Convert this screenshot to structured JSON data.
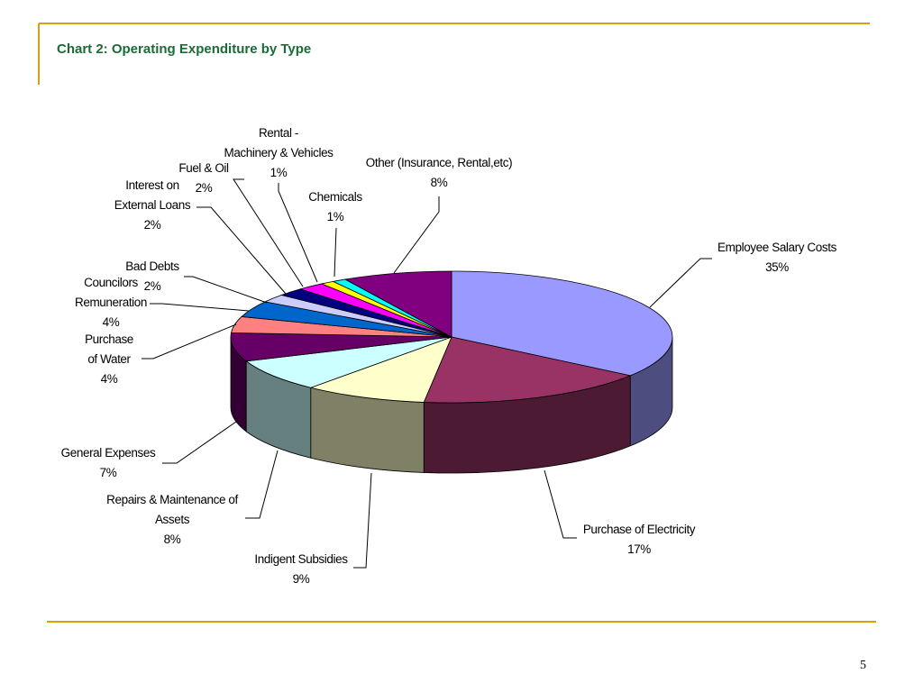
{
  "slide": {
    "title": "Chart 2: Operating Expenditure by Type",
    "page_number": "5",
    "accent_color": "#D4A017",
    "title_color": "#1A6B35"
  },
  "chart_data": {
    "type": "pie",
    "style": "3d-exploded-none",
    "title": "",
    "start_at": "12 o'clock, clockwise",
    "slices": [
      {
        "name": "Employee Salary Costs",
        "value": 35,
        "pct_label": "35%",
        "color": "#9999FF"
      },
      {
        "name": "Purchase of Electricity",
        "value": 17,
        "pct_label": "17%",
        "color": "#993366"
      },
      {
        "name": "Indigent Subsidies",
        "value": 9,
        "pct_label": "9%",
        "color": "#FFFFCC"
      },
      {
        "name": "Repairs & Maintenance of Assets",
        "value": 8,
        "pct_label": "8%",
        "color": "#CCFFFF"
      },
      {
        "name": "General Expenses",
        "value": 7,
        "pct_label": "7%",
        "color": "#660066"
      },
      {
        "name": "Purchase of Water",
        "value": 4,
        "pct_label": "4%",
        "color": "#FF8080"
      },
      {
        "name": "Councilors Remuneration",
        "value": 4,
        "pct_label": "4%",
        "color": "#0066CC"
      },
      {
        "name": "Bad Debts",
        "value": 2,
        "pct_label": "2%",
        "color": "#CCCCFF"
      },
      {
        "name": "Interest on External Loans",
        "value": 2,
        "pct_label": "2%",
        "color": "#000080"
      },
      {
        "name": "Fuel & Oil",
        "value": 2,
        "pct_label": "2%",
        "color": "#FF00FF"
      },
      {
        "name": "Rental - Machinery & Vehicles",
        "value": 1,
        "pct_label": "1%",
        "color": "#FFFF00"
      },
      {
        "name": "Chemicals",
        "value": 1,
        "pct_label": "1%",
        "color": "#00FFFF"
      },
      {
        "name": "Other (Insurance, Rental,etc)",
        "value": 8,
        "pct_label": "8%",
        "color": "#800080"
      }
    ],
    "labels": [
      {
        "lines": [
          "Employee Salary Costs",
          "35%"
        ]
      },
      {
        "lines": [
          "Purchase of Electricity",
          "17%"
        ]
      },
      {
        "lines": [
          "Indigent Subsidies",
          "9%"
        ]
      },
      {
        "lines": [
          "Repairs & Maintenance of",
          "Assets",
          "8%"
        ]
      },
      {
        "lines": [
          "General Expenses",
          "7%"
        ]
      },
      {
        "lines": [
          "Purchase",
          "of Water",
          "4%"
        ]
      },
      {
        "lines": [
          "Councilors",
          "Remuneration",
          "4%"
        ]
      },
      {
        "lines": [
          "Bad Debts",
          "2%"
        ]
      },
      {
        "lines": [
          "Interest on",
          "External Loans",
          "2%"
        ]
      },
      {
        "lines": [
          "Fuel & Oil",
          "2%"
        ]
      },
      {
        "lines": [
          "Rental -",
          "Machinery & Vehicles",
          "1%"
        ]
      },
      {
        "lines": [
          "Chemicals",
          "1%"
        ]
      },
      {
        "lines": [
          "Other (Insurance, Rental,etc)",
          "8%"
        ]
      }
    ]
  }
}
